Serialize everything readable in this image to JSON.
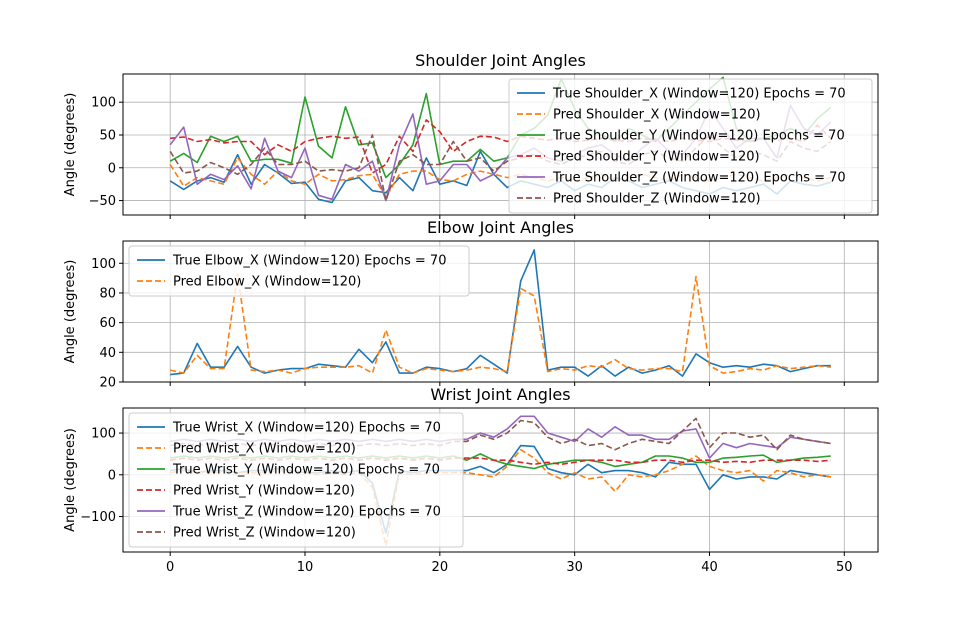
{
  "chart_data": [
    {
      "type": "line",
      "title": "Shoulder Joint Angles",
      "ylabel": "Angle (degrees)",
      "xlim": [
        -3.5,
        52.5
      ],
      "ylim": [
        -72,
        143
      ],
      "yticks": [
        -50,
        0,
        50,
        100
      ],
      "xticks": [
        0,
        10,
        20,
        30,
        40,
        50
      ],
      "show_xticklabels": false,
      "grid": true,
      "legend_position": "top-right",
      "x": [
        0,
        1,
        2,
        3,
        4,
        5,
        6,
        7,
        8,
        9,
        10,
        11,
        12,
        13,
        14,
        15,
        16,
        17,
        18,
        19,
        20,
        21,
        22,
        23,
        24,
        25,
        26,
        27,
        28,
        29,
        30,
        31,
        32,
        33,
        34,
        35,
        36,
        37,
        38,
        39,
        40,
        41,
        42,
        43,
        44,
        45,
        46,
        47,
        48,
        49
      ],
      "series": [
        {
          "name": "True Shoulder_X (Window=120) Epochs = 70",
          "color": "#1f77b4",
          "style": "solid",
          "values": [
            -20,
            -33,
            -20,
            -15,
            -22,
            20,
            -25,
            5,
            -8,
            -24,
            -22,
            -48,
            -53,
            -20,
            -15,
            -35,
            -38,
            -15,
            -35,
            15,
            -25,
            -20,
            -27,
            25,
            -10,
            -30,
            -20,
            -25,
            -30,
            -20,
            -35,
            -25,
            -30,
            -15,
            -20,
            -30,
            -25,
            -20,
            -30,
            -35,
            -40,
            -30,
            -35,
            -30,
            -25,
            -40,
            -20,
            -25,
            -28,
            -22
          ]
        },
        {
          "name": "Pred Shoulder_X (Window=120)",
          "color": "#ff7f0e",
          "style": "dashed",
          "values": [
            5,
            -28,
            -15,
            -20,
            -25,
            15,
            -10,
            -25,
            -5,
            -20,
            -25,
            -10,
            -20,
            -18,
            -12,
            -10,
            -45,
            -10,
            -5,
            -5,
            -18,
            -20,
            -10,
            -5,
            -10,
            -15,
            -10,
            -15,
            -20,
            -15,
            -20,
            -15,
            -10,
            -20,
            -15,
            -10,
            -15,
            -20,
            -10,
            -15,
            -20,
            -15,
            -10,
            -15,
            -20,
            -15,
            -10,
            -15,
            -20,
            -15
          ]
        },
        {
          "name": "True Shoulder_Y (Window=120) Epochs = 70",
          "color": "#2ca02c",
          "style": "solid",
          "values": [
            10,
            22,
            8,
            48,
            40,
            48,
            10,
            13,
            13,
            7,
            108,
            33,
            15,
            93,
            35,
            38,
            -15,
            5,
            35,
            113,
            5,
            10,
            10,
            28,
            10,
            15,
            50,
            60,
            80,
            135,
            90,
            60,
            50,
            40,
            60,
            50,
            40,
            60,
            80,
            100,
            120,
            138,
            60,
            40,
            45,
            50,
            60,
            50,
            75,
            92
          ]
        },
        {
          "name": "Pred Shoulder_Y (Window=120)",
          "color": "#d62728",
          "style": "dashed",
          "values": [
            45,
            47,
            40,
            43,
            38,
            40,
            40,
            20,
            35,
            25,
            40,
            45,
            48,
            45,
            47,
            -8,
            5,
            48,
            25,
            73,
            55,
            25,
            40,
            48,
            47,
            40,
            48,
            45,
            42,
            45,
            40,
            42,
            45,
            42,
            40,
            45,
            42,
            40,
            45,
            42,
            40,
            45,
            42,
            40,
            45,
            42,
            45,
            40,
            65,
            45
          ]
        },
        {
          "name": "True Shoulder_Z (Window=120) Epochs = 70",
          "color": "#9467bd",
          "style": "solid",
          "values": [
            35,
            62,
            -25,
            -10,
            -18,
            3,
            -32,
            45,
            -5,
            -15,
            30,
            -42,
            -48,
            5,
            -5,
            10,
            -50,
            35,
            82,
            -25,
            -20,
            5,
            5,
            -20,
            -10,
            15,
            20,
            30,
            15,
            10,
            20,
            30,
            35,
            20,
            10,
            30,
            45,
            25,
            20,
            45,
            90,
            60,
            30,
            45,
            45,
            15,
            95,
            60,
            50,
            70
          ]
        },
        {
          "name": "Pred Shoulder_Z (Window=120)",
          "color": "#8c564b",
          "style": "dashed",
          "values": [
            25,
            -8,
            -5,
            8,
            0,
            -10,
            5,
            30,
            5,
            5,
            10,
            -5,
            -3,
            -5,
            0,
            50,
            -50,
            10,
            20,
            5,
            5,
            40,
            10,
            15,
            -5,
            10,
            15,
            20,
            10,
            5,
            15,
            20,
            25,
            10,
            5,
            20,
            25,
            15,
            10,
            30,
            50,
            30,
            15,
            25,
            20,
            10,
            40,
            30,
            25,
            40
          ]
        }
      ]
    },
    {
      "type": "line",
      "title": "Elbow Joint Angles",
      "ylabel": "Angle (degrees)",
      "xlim": [
        -3.5,
        52.5
      ],
      "ylim": [
        20,
        115
      ],
      "yticks": [
        20,
        40,
        60,
        80,
        100
      ],
      "xticks": [
        0,
        10,
        20,
        30,
        40,
        50
      ],
      "show_xticklabels": false,
      "grid": true,
      "legend_position": "top-left",
      "x": [
        0,
        1,
        2,
        3,
        4,
        5,
        6,
        7,
        8,
        9,
        10,
        11,
        12,
        13,
        14,
        15,
        16,
        17,
        18,
        19,
        20,
        21,
        22,
        23,
        24,
        25,
        26,
        27,
        28,
        29,
        30,
        31,
        32,
        33,
        34,
        35,
        36,
        37,
        38,
        39,
        40,
        41,
        42,
        43,
        44,
        45,
        46,
        47,
        48,
        49
      ],
      "series": [
        {
          "name": "True Elbow_X (Window=120) Epochs = 70",
          "color": "#1f77b4",
          "style": "solid",
          "values": [
            25,
            26,
            46,
            30,
            30,
            44,
            30,
            26,
            28,
            29,
            29,
            32,
            31,
            30,
            42,
            33,
            47,
            26,
            26,
            30,
            29,
            27,
            29,
            38,
            32,
            26,
            88,
            109,
            28,
            30,
            30,
            24,
            31,
            24,
            30,
            26,
            28,
            31,
            24,
            39,
            33,
            30,
            31,
            30,
            32,
            31,
            27,
            29,
            31,
            31
          ]
        },
        {
          "name": "Pred Elbow_X (Window=120)",
          "color": "#ff7f0e",
          "style": "dashed",
          "values": [
            28,
            26,
            38,
            29,
            29,
            93,
            28,
            27,
            28,
            26,
            29,
            30,
            30,
            30,
            31,
            26,
            55,
            30,
            26,
            29,
            28,
            27,
            28,
            30,
            29,
            27,
            83,
            78,
            27,
            29,
            28,
            31,
            30,
            35,
            29,
            28,
            29,
            29,
            27,
            91,
            31,
            26,
            27,
            29,
            28,
            31,
            29,
            30,
            31,
            30
          ]
        }
      ]
    },
    {
      "type": "line",
      "title": "Wrist Joint Angles",
      "ylabel": "Angle (degrees)",
      "xlim": [
        -3.5,
        52.5
      ],
      "ylim": [
        -185,
        160
      ],
      "yticks": [
        -100,
        0,
        100
      ],
      "xticks": [
        0,
        10,
        20,
        30,
        40,
        50
      ],
      "show_xticklabels": true,
      "grid": true,
      "legend_position": "top-left",
      "x": [
        0,
        1,
        2,
        3,
        4,
        5,
        6,
        7,
        8,
        9,
        10,
        11,
        12,
        13,
        14,
        15,
        16,
        17,
        18,
        19,
        20,
        21,
        22,
        23,
        24,
        25,
        26,
        27,
        28,
        29,
        30,
        31,
        32,
        33,
        34,
        35,
        36,
        37,
        38,
        39,
        40,
        41,
        42,
        43,
        44,
        45,
        46,
        47,
        48,
        49
      ],
      "series": [
        {
          "name": "True Wrist_X (Window=120) Epochs = 70",
          "color": "#1f77b4",
          "style": "solid",
          "values": [
            10,
            15,
            5,
            10,
            10,
            5,
            10,
            10,
            15,
            10,
            5,
            5,
            10,
            5,
            10,
            -20,
            -140,
            10,
            5,
            10,
            10,
            10,
            10,
            20,
            5,
            25,
            70,
            68,
            15,
            5,
            0,
            25,
            5,
            10,
            10,
            5,
            -5,
            30,
            25,
            25,
            -35,
            0,
            -10,
            -5,
            -5,
            -10,
            10,
            5,
            0,
            -5
          ]
        },
        {
          "name": "Pred Wrist_X (Window=120)",
          "color": "#ff7f0e",
          "style": "dashed",
          "values": [
            5,
            10,
            5,
            5,
            5,
            5,
            5,
            5,
            10,
            5,
            5,
            0,
            5,
            0,
            5,
            -30,
            -170,
            5,
            0,
            5,
            5,
            5,
            5,
            0,
            -5,
            20,
            60,
            40,
            5,
            -10,
            5,
            -10,
            -5,
            -40,
            0,
            -5,
            0,
            10,
            25,
            45,
            20,
            10,
            5,
            10,
            -15,
            10,
            5,
            -5,
            0,
            -5
          ]
        },
        {
          "name": "True Wrist_Y (Window=120) Epochs = 70",
          "color": "#2ca02c",
          "style": "solid",
          "values": [
            40,
            45,
            40,
            45,
            40,
            45,
            40,
            45,
            40,
            45,
            40,
            45,
            40,
            45,
            40,
            45,
            40,
            45,
            40,
            45,
            40,
            45,
            35,
            50,
            35,
            25,
            20,
            15,
            25,
            30,
            35,
            35,
            30,
            20,
            25,
            30,
            45,
            45,
            40,
            30,
            30,
            40,
            42,
            45,
            47,
            30,
            35,
            40,
            42,
            45
          ]
        },
        {
          "name": "Pred Wrist_Y (Window=120)",
          "color": "#d62728",
          "style": "dashed",
          "values": [
            35,
            40,
            35,
            40,
            35,
            40,
            35,
            40,
            35,
            40,
            35,
            40,
            35,
            40,
            35,
            40,
            35,
            40,
            35,
            40,
            35,
            40,
            40,
            40,
            35,
            35,
            30,
            25,
            30,
            25,
            30,
            35,
            35,
            35,
            30,
            30,
            35,
            35,
            30,
            35,
            35,
            30,
            32,
            30,
            35,
            35,
            35,
            35,
            32,
            35
          ]
        },
        {
          "name": "True Wrist_Z (Window=120) Epochs = 70",
          "color": "#9467bd",
          "style": "solid",
          "values": [
            80,
            85,
            80,
            85,
            80,
            85,
            80,
            85,
            80,
            85,
            80,
            85,
            80,
            85,
            80,
            85,
            80,
            85,
            80,
            85,
            80,
            85,
            85,
            100,
            90,
            110,
            140,
            140,
            100,
            90,
            80,
            110,
            90,
            115,
            95,
            95,
            85,
            85,
            105,
            110,
            40,
            75,
            65,
            75,
            70,
            65,
            90,
            85,
            80,
            75
          ]
        },
        {
          "name": "Pred Wrist_Z (Window=120)",
          "color": "#8c564b",
          "style": "dashed",
          "values": [
            70,
            75,
            70,
            75,
            70,
            75,
            70,
            75,
            70,
            75,
            70,
            75,
            70,
            75,
            70,
            75,
            70,
            75,
            70,
            75,
            70,
            80,
            80,
            95,
            85,
            100,
            130,
            125,
            90,
            75,
            85,
            70,
            75,
            60,
            75,
            85,
            80,
            75,
            105,
            135,
            65,
            100,
            100,
            90,
            95,
            60,
            95,
            85,
            80,
            75
          ]
        }
      ]
    }
  ]
}
